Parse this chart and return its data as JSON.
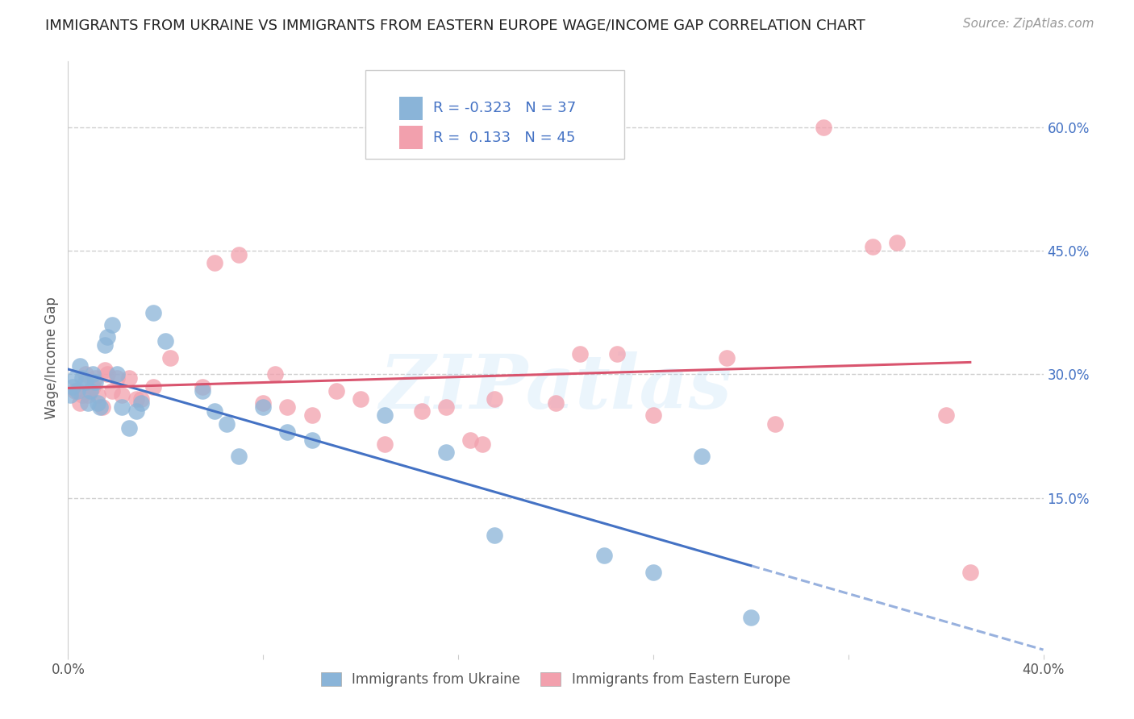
{
  "title": "IMMIGRANTS FROM UKRAINE VS IMMIGRANTS FROM EASTERN EUROPE WAGE/INCOME GAP CORRELATION CHART",
  "source": "Source: ZipAtlas.com",
  "ylabel": "Wage/Income Gap",
  "watermark": "ZIPatlas",
  "xlim": [
    0.0,
    0.4
  ],
  "ylim": [
    -0.04,
    0.68
  ],
  "yticks": [
    0.0,
    0.15,
    0.3,
    0.45,
    0.6
  ],
  "ytick_labels": [
    "",
    "15.0%",
    "30.0%",
    "45.0%",
    "60.0%"
  ],
  "xticks": [
    0.0,
    0.08,
    0.16,
    0.24,
    0.32,
    0.4
  ],
  "xtick_labels": [
    "0.0%",
    "",
    "",
    "",
    "",
    "40.0%"
  ],
  "legend_label1": "Immigrants from Ukraine",
  "legend_label2": "Immigrants from Eastern Europe",
  "R1": -0.323,
  "N1": 37,
  "R2": 0.133,
  "N2": 45,
  "blue_color": "#8ab4d8",
  "pink_color": "#f2a0ad",
  "blue_line_color": "#4472c4",
  "pink_line_color": "#d9546e",
  "background_color": "#ffffff",
  "grid_color": "#d0d0d0",
  "blue_x": [
    0.001,
    0.002,
    0.003,
    0.004,
    0.005,
    0.006,
    0.007,
    0.008,
    0.009,
    0.01,
    0.011,
    0.012,
    0.013,
    0.015,
    0.016,
    0.018,
    0.02,
    0.022,
    0.025,
    0.028,
    0.03,
    0.035,
    0.04,
    0.055,
    0.06,
    0.065,
    0.07,
    0.08,
    0.09,
    0.1,
    0.13,
    0.155,
    0.175,
    0.22,
    0.24,
    0.26,
    0.28
  ],
  "blue_y": [
    0.275,
    0.285,
    0.295,
    0.28,
    0.31,
    0.295,
    0.29,
    0.265,
    0.28,
    0.3,
    0.29,
    0.265,
    0.26,
    0.335,
    0.345,
    0.36,
    0.3,
    0.26,
    0.235,
    0.255,
    0.265,
    0.375,
    0.34,
    0.28,
    0.255,
    0.24,
    0.2,
    0.26,
    0.23,
    0.22,
    0.25,
    0.205,
    0.105,
    0.08,
    0.06,
    0.2,
    0.005
  ],
  "pink_x": [
    0.003,
    0.005,
    0.006,
    0.007,
    0.008,
    0.01,
    0.011,
    0.012,
    0.014,
    0.015,
    0.016,
    0.018,
    0.02,
    0.022,
    0.025,
    0.028,
    0.03,
    0.035,
    0.042,
    0.055,
    0.06,
    0.07,
    0.08,
    0.085,
    0.09,
    0.1,
    0.11,
    0.12,
    0.13,
    0.145,
    0.155,
    0.165,
    0.17,
    0.175,
    0.2,
    0.21,
    0.225,
    0.24,
    0.27,
    0.29,
    0.31,
    0.33,
    0.34,
    0.36,
    0.37
  ],
  "pink_y": [
    0.28,
    0.265,
    0.275,
    0.3,
    0.275,
    0.285,
    0.295,
    0.275,
    0.26,
    0.305,
    0.3,
    0.28,
    0.295,
    0.275,
    0.295,
    0.27,
    0.27,
    0.285,
    0.32,
    0.285,
    0.435,
    0.445,
    0.265,
    0.3,
    0.26,
    0.25,
    0.28,
    0.27,
    0.215,
    0.255,
    0.26,
    0.22,
    0.215,
    0.27,
    0.265,
    0.325,
    0.325,
    0.25,
    0.32,
    0.24,
    0.6,
    0.455,
    0.46,
    0.25,
    0.06
  ]
}
